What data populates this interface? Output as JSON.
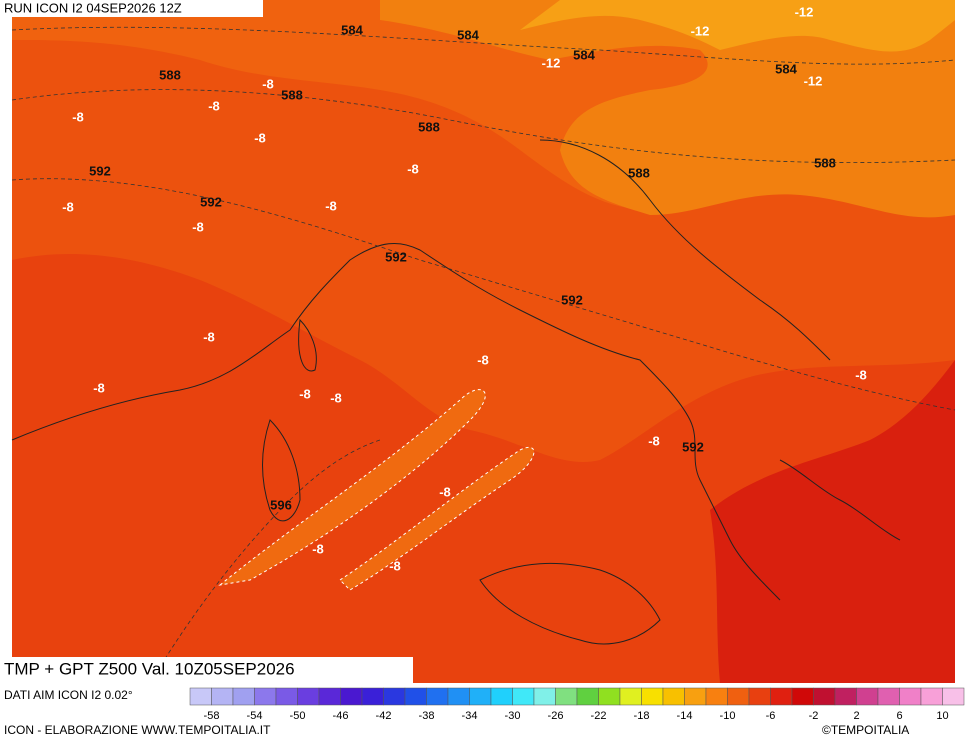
{
  "header": {
    "run": "RUN ICON I2 04SEP2026 12Z"
  },
  "map": {
    "contour_labels": [
      584,
      584,
      584,
      584,
      -12,
      -12,
      -12,
      -12,
      588,
      588,
      588,
      588,
      588,
      592,
      592,
      592,
      592,
      592,
      596,
      -8,
      -8,
      -8,
      -8,
      -8,
      -8,
      -8,
      -8,
      -8,
      -8,
      -8,
      -8,
      -8,
      -8,
      -8,
      -8,
      -8,
      -8
    ]
  },
  "footer": {
    "title": "TMP + GPT Z500 Val. 10Z05SEP2026",
    "source": "DATI AIM ICON I2 0.02°",
    "credit": "ICON - ELABORAZIONE WWW.TEMPOITALIA.IT",
    "copyright": "©TEMPOITALIA",
    "scale_labels": [
      -58,
      -54,
      -50,
      -46,
      -42,
      -38,
      -34,
      -30,
      -26,
      -22,
      -18,
      -14,
      -10,
      -6,
      -2,
      2,
      6,
      10
    ]
  }
}
